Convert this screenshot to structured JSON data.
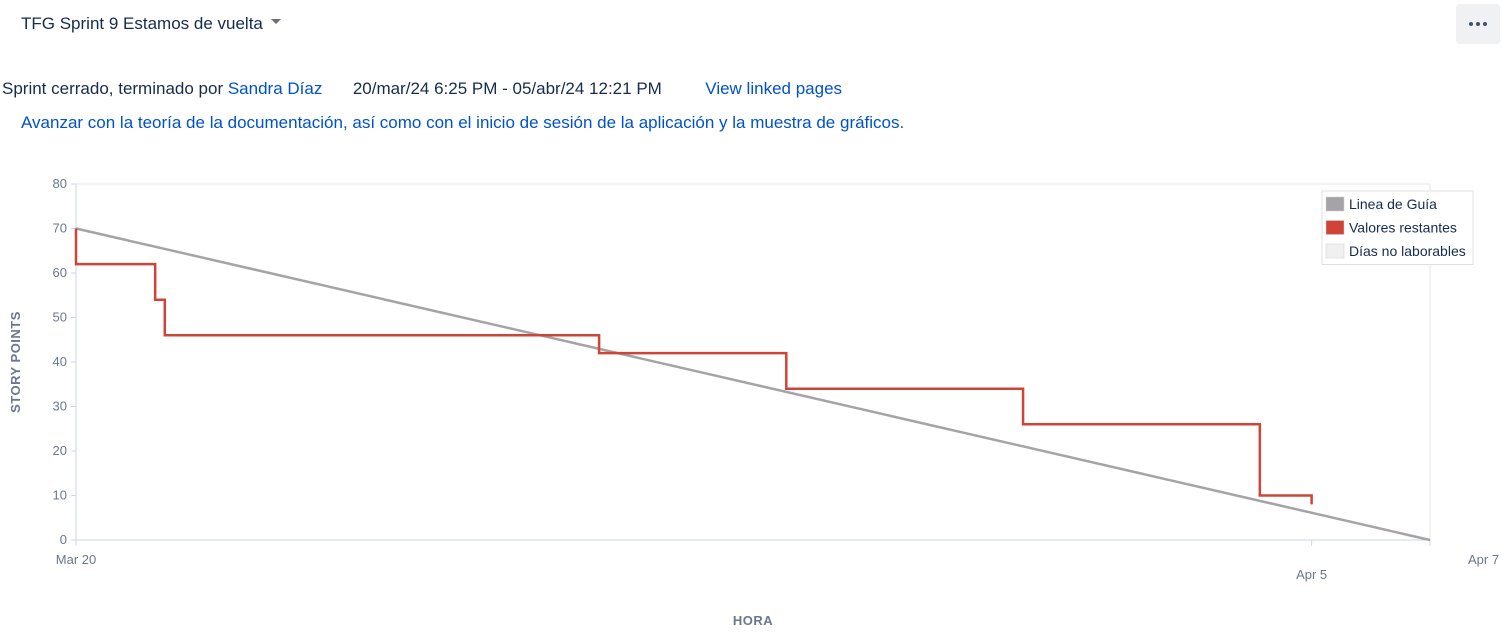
{
  "header": {
    "sprint_title": "TFG Sprint 9 Estamos de vuelta",
    "more_button_label": "more-options"
  },
  "meta": {
    "status_prefix": "Sprint cerrado, terminado por",
    "closed_by": "Sandra Díaz",
    "date_range": "20/mar/24 6:25 PM - 05/abr/24 12:21 PM",
    "linked_pages_link": "View linked pages"
  },
  "goal": "Avanzar con la teoría de la documentación, así como con el inicio de sesión de la aplicación y la muestra de gráficos.",
  "colors": {
    "guide": "#a5a3a6",
    "remaining": "#d04437",
    "non_working": "#f0f0f0",
    "axis": "#ccd6eb"
  },
  "chart_data": {
    "type": "line",
    "title": "",
    "xlabel": "HORA",
    "ylabel": "STORY POINTS",
    "ylim": [
      0,
      80
    ],
    "xlim": [
      0,
      18.3
    ],
    "x_unit": "days since Mar 20",
    "yticks": [
      0,
      10,
      20,
      30,
      40,
      50,
      60,
      70,
      80
    ],
    "xticks": [
      {
        "value": 0,
        "label": "Mar 20",
        "row": 0
      },
      {
        "value": 16.7,
        "label": "Apr 5",
        "row": 1
      },
      {
        "value": 18.3,
        "label": "Apr 7",
        "row": 0
      }
    ],
    "legend_position": "top-right",
    "legend": [
      {
        "label": "Linea de Guía",
        "key": "guide"
      },
      {
        "label": "Valores restantes",
        "key": "remaining"
      },
      {
        "label": "Días no laborables",
        "key": "non_working"
      }
    ],
    "series": [
      {
        "name": "Linea de Guía",
        "key": "guide",
        "x": [
          0,
          18.3
        ],
        "values": [
          70,
          0
        ]
      },
      {
        "name": "Valores restantes",
        "key": "remaining",
        "step": true,
        "x": [
          0,
          0,
          1.07,
          1.2,
          7.07,
          9.6,
          12.8,
          16.0,
          16.7
        ],
        "values": [
          70,
          62,
          54,
          46,
          42,
          34,
          26,
          10,
          8
        ]
      }
    ]
  }
}
